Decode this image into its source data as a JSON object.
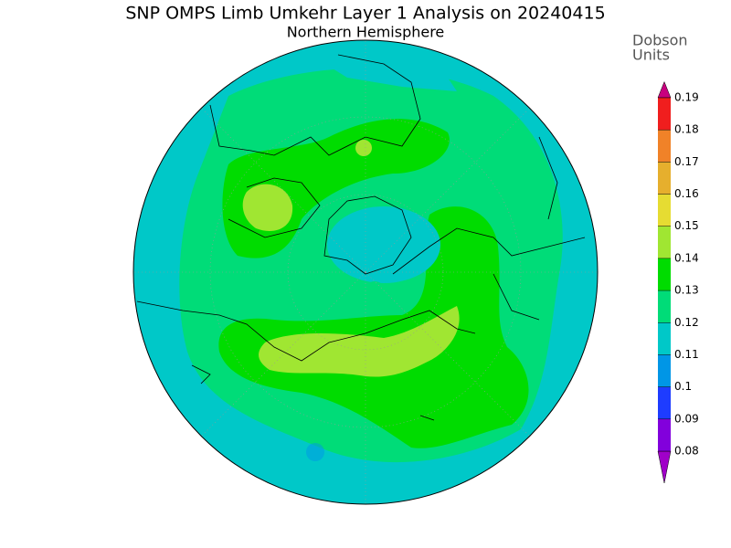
{
  "header": {
    "title": "SNP OMPS Limb Umkehr Layer 1 Analysis on 20240415",
    "subtitle": "Northern Hemisphere"
  },
  "colorbar": {
    "label_lines": [
      "Dobson",
      "Units"
    ],
    "ticks": [
      0.08,
      0.09,
      0.1,
      0.11,
      0.12,
      0.13,
      0.14,
      0.15,
      0.16,
      0.17,
      0.18,
      0.19
    ],
    "colors": [
      "#a000c8",
      "#8200dc",
      "#1e3cff",
      "#0096e6",
      "#00c8c8",
      "#00dc78",
      "#00dc00",
      "#a0e632",
      "#e6dc32",
      "#e6af2d",
      "#f08228",
      "#f01e1e",
      "#c8007f"
    ]
  }
}
